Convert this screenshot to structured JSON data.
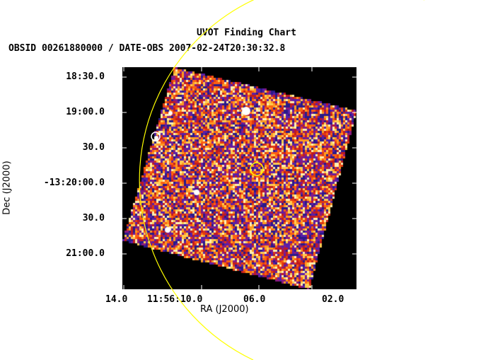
{
  "header": {
    "title": "UVOT Finding Chart",
    "subtitle": "OBSID 00261880000 / DATE-OBS 2007-02-24T20:30:32.8"
  },
  "axes": {
    "xlabel": "RA (J2000)",
    "ylabel": "Dec (J2000)",
    "xticks": [
      "14.0",
      "11:56:10.0",
      "06.0",
      "02.0"
    ],
    "yticks": [
      "18:30.0",
      "19:00.0",
      "30.0",
      "-13:20:00.0",
      "30.0",
      "21:00.0"
    ]
  },
  "colors": {
    "background": "#000000",
    "marker_white": "#ffffff",
    "marker_yellow": "#ffff00",
    "arc": "#ffff00"
  }
}
